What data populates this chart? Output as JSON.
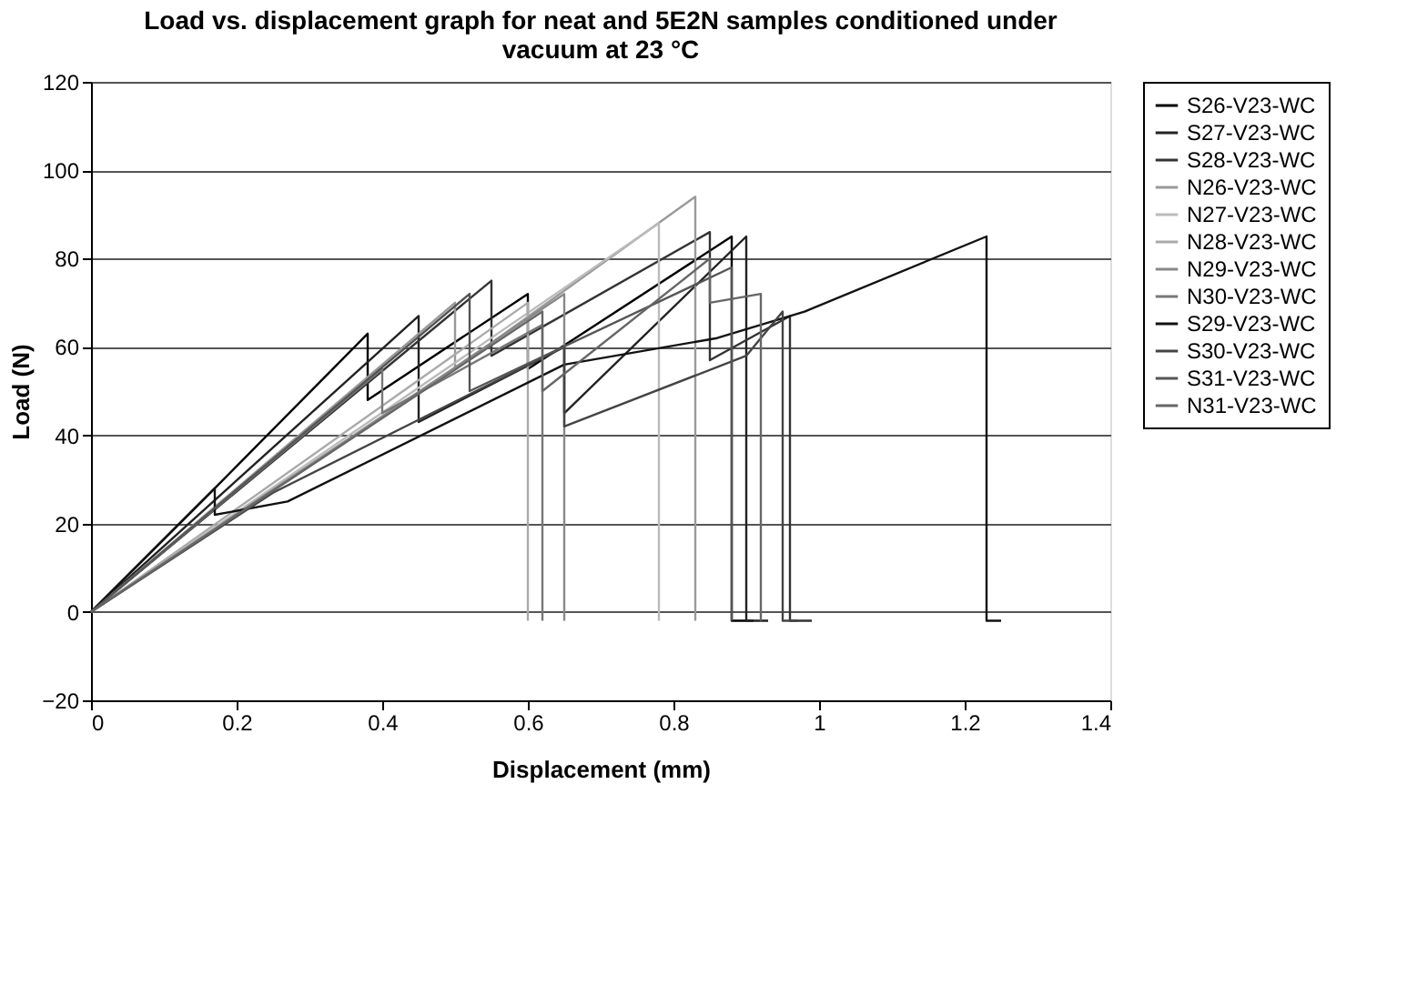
{
  "chart_data": {
    "type": "line",
    "title": [
      "Load vs. displacement graph for neat and 5E2N samples conditioned under",
      "vacuum at 23 °C"
    ],
    "xlabel": "Displacement (mm)",
    "ylabel": "Load (N)",
    "xlim": [
      0,
      1.4
    ],
    "xticks": [
      0,
      0.2,
      0.4,
      0.6,
      0.8,
      1,
      1.2,
      1.4
    ],
    "ylim": [
      -20,
      120
    ],
    "yticks": [
      -20,
      0,
      20,
      40,
      60,
      80,
      100,
      120
    ],
    "grid": "y",
    "legend": "right",
    "marker": "none",
    "series": [
      {
        "name": "S26-V23-WC",
        "color": "#000000",
        "x": [
          0,
          0.17,
          0.38,
          0.38,
          0.6,
          0.6,
          0.88,
          0.88,
          0.91
        ],
        "values": [
          0,
          28,
          63,
          48,
          72,
          55,
          85,
          -2,
          -2
        ]
      },
      {
        "name": "S27-V23-WC",
        "color": "#222222",
        "x": [
          0,
          0.45,
          0.45,
          0.65,
          0.65,
          0.9,
          0.9,
          0.93
        ],
        "values": [
          0,
          67,
          43,
          60,
          45,
          85,
          -2,
          -2
        ]
      },
      {
        "name": "S28-V23-WC",
        "color": "#333333",
        "x": [
          0,
          0.55,
          0.55,
          0.85,
          0.85,
          0.96,
          0.96,
          0.99
        ],
        "values": [
          0,
          75,
          58,
          86,
          57,
          67,
          -2,
          -2
        ]
      },
      {
        "name": "N26-V23-WC",
        "color": "#999999",
        "x": [
          0,
          0.5,
          0.5,
          0.83,
          0.83
        ],
        "values": [
          0,
          70,
          55,
          94,
          -2
        ]
      },
      {
        "name": "N27-V23-WC",
        "color": "#bbbbbb",
        "x": [
          0,
          0.78,
          0.78
        ],
        "values": [
          0,
          88,
          -2
        ]
      },
      {
        "name": "N28-V23-WC",
        "color": "#aaaaaa",
        "x": [
          0,
          0.6,
          0.6
        ],
        "values": [
          0,
          70,
          -2
        ]
      },
      {
        "name": "N29-V23-WC",
        "color": "#888888",
        "x": [
          0,
          0.65,
          0.65
        ],
        "values": [
          0,
          72,
          -2
        ]
      },
      {
        "name": "N30-V23-WC",
        "color": "#777777",
        "x": [
          0,
          0.4,
          0.4,
          0.62,
          0.62
        ],
        "values": [
          0,
          55,
          45,
          65,
          -2
        ]
      },
      {
        "name": "S29-V23-WC",
        "color": "#111111",
        "x": [
          0,
          0.17,
          0.17,
          0.27,
          0.65,
          0.86,
          0.98,
          1.23,
          1.23,
          1.25
        ],
        "values": [
          0,
          28,
          22,
          25,
          56,
          62,
          68,
          85,
          -2,
          -2
        ]
      },
      {
        "name": "S30-V23-WC",
        "color": "#444444",
        "x": [
          0,
          0.25,
          0.65,
          0.65,
          0.9,
          0.95,
          0.95,
          0.97
        ],
        "values": [
          0,
          27,
          60,
          42,
          58,
          68,
          -2,
          -2
        ]
      },
      {
        "name": "S31-V23-WC",
        "color": "#555555",
        "x": [
          0,
          0.52,
          0.52,
          0.88,
          0.88
        ],
        "values": [
          0,
          72,
          50,
          78,
          -2
        ]
      },
      {
        "name": "N31-V23-WC",
        "color": "#666666",
        "x": [
          0,
          0.62,
          0.62,
          0.85,
          0.85,
          0.92,
          0.92
        ],
        "values": [
          0,
          68,
          50,
          80,
          70,
          72,
          -2
        ]
      }
    ]
  }
}
